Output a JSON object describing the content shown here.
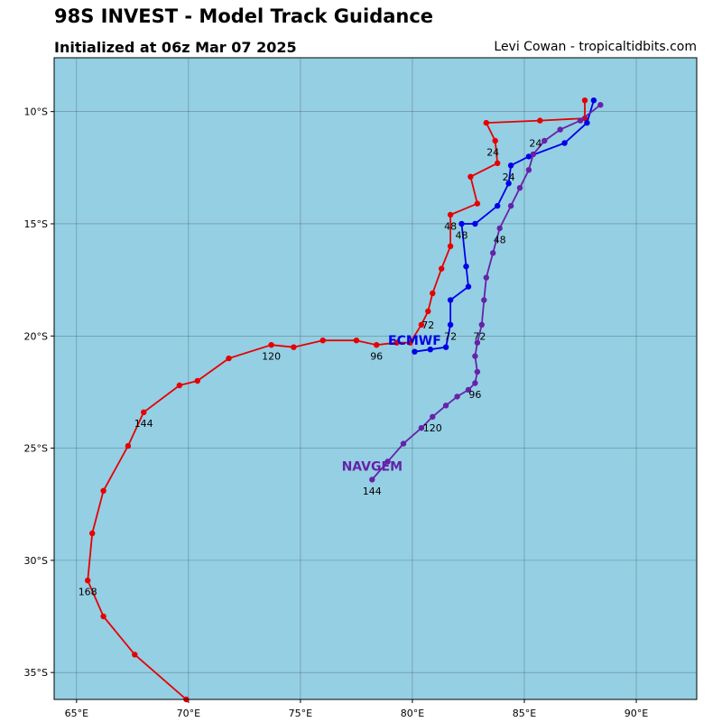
{
  "header": {
    "title": "98S INVEST - Model Track Guidance",
    "subtitle": "Initialized at 06z Mar 07 2025",
    "credit": "Levi Cowan - tropicaltidbits.com"
  },
  "chart_data": {
    "type": "line",
    "map": {
      "lon_range": [
        64.0,
        92.7
      ],
      "lat_range": [
        -36.2,
        -7.6
      ],
      "ocean_color": "#94cfe4",
      "grid": true,
      "lon_ticks": [
        {
          "value": 65,
          "label": "65°E"
        },
        {
          "value": 70,
          "label": "70°E"
        },
        {
          "value": 75,
          "label": "75°E"
        },
        {
          "value": 80,
          "label": "80°E"
        },
        {
          "value": 85,
          "label": "85°E"
        },
        {
          "value": 90,
          "label": "90°E"
        }
      ],
      "lat_ticks": [
        {
          "value": -10,
          "label": "10°S"
        },
        {
          "value": -15,
          "label": "15°S"
        },
        {
          "value": -20,
          "label": "20°S"
        },
        {
          "value": -25,
          "label": "25°S"
        },
        {
          "value": -30,
          "label": "30°S"
        },
        {
          "value": -35,
          "label": "35°S"
        }
      ]
    },
    "series": [
      {
        "name": "",
        "color": "#e60000",
        "points": [
          [
            87.7,
            -9.5
          ],
          [
            87.7,
            -10.3
          ],
          [
            85.7,
            -10.4
          ],
          [
            83.3,
            -10.5
          ],
          [
            83.7,
            -11.3
          ],
          [
            83.8,
            -12.3
          ],
          [
            82.6,
            -12.9
          ],
          [
            82.9,
            -14.1
          ],
          [
            81.7,
            -14.6
          ],
          [
            81.7,
            -16.0
          ],
          [
            81.3,
            -17.0
          ],
          [
            80.9,
            -18.1
          ],
          [
            80.7,
            -18.9
          ],
          [
            80.4,
            -19.5
          ],
          [
            79.9,
            -20.3
          ],
          [
            79.3,
            -20.3
          ],
          [
            78.4,
            -20.4
          ],
          [
            77.5,
            -20.2
          ],
          [
            76.0,
            -20.2
          ],
          [
            74.7,
            -20.5
          ],
          [
            73.7,
            -20.4
          ],
          [
            71.8,
            -21.0
          ],
          [
            70.4,
            -22.0
          ],
          [
            69.6,
            -22.2
          ],
          [
            68.0,
            -23.4
          ],
          [
            67.3,
            -24.9
          ],
          [
            66.2,
            -26.9
          ],
          [
            65.7,
            -28.8
          ],
          [
            65.5,
            -30.9
          ],
          [
            66.2,
            -32.5
          ],
          [
            67.6,
            -34.2
          ],
          [
            69.9,
            -36.2
          ]
        ],
        "tau_labels": [
          {
            "lon": 83.6,
            "lat": -11.8,
            "text": "24"
          },
          {
            "lon": 81.7,
            "lat": -15.1,
            "text": "48"
          },
          {
            "lon": 80.7,
            "lat": -19.5,
            "text": "72"
          },
          {
            "lon": 78.4,
            "lat": -20.9,
            "text": "96"
          },
          {
            "lon": 73.7,
            "lat": -20.9,
            "text": "120"
          },
          {
            "lon": 68.0,
            "lat": -23.9,
            "text": "144"
          },
          {
            "lon": 65.5,
            "lat": -31.4,
            "text": "168"
          }
        ]
      },
      {
        "name": "ECMWF",
        "color": "#0000e6",
        "points": [
          [
            88.1,
            -9.5
          ],
          [
            87.8,
            -10.5
          ],
          [
            86.8,
            -11.4
          ],
          [
            85.2,
            -12.0
          ],
          [
            84.4,
            -12.4
          ],
          [
            84.3,
            -13.2
          ],
          [
            83.8,
            -14.2
          ],
          [
            82.8,
            -15.0
          ],
          [
            82.2,
            -15.0
          ],
          [
            82.4,
            -16.9
          ],
          [
            82.5,
            -17.8
          ],
          [
            81.7,
            -18.4
          ],
          [
            81.7,
            -19.5
          ],
          [
            81.5,
            -20.5
          ],
          [
            80.8,
            -20.6
          ],
          [
            80.1,
            -20.7
          ]
        ],
        "tau_labels": [
          {
            "lon": 84.3,
            "lat": -12.9,
            "text": "24"
          },
          {
            "lon": 82.2,
            "lat": -15.5,
            "text": "48"
          },
          {
            "lon": 81.7,
            "lat": -20.0,
            "text": "72"
          }
        ],
        "label": {
          "lon": 80.1,
          "lat": -20.2
        }
      },
      {
        "name": "NAVGEM",
        "color": "#6622a8",
        "points": [
          [
            88.4,
            -9.7
          ],
          [
            87.5,
            -10.4
          ],
          [
            86.6,
            -10.8
          ],
          [
            85.9,
            -11.3
          ],
          [
            85.4,
            -11.9
          ],
          [
            85.2,
            -12.6
          ],
          [
            84.8,
            -13.4
          ],
          [
            84.4,
            -14.2
          ],
          [
            83.9,
            -15.2
          ],
          [
            83.6,
            -16.3
          ],
          [
            83.3,
            -17.4
          ],
          [
            83.2,
            -18.4
          ],
          [
            83.1,
            -19.5
          ],
          [
            82.9,
            -20.3
          ],
          [
            82.8,
            -20.9
          ],
          [
            82.9,
            -21.6
          ],
          [
            82.8,
            -22.1
          ],
          [
            82.5,
            -22.4
          ],
          [
            82.0,
            -22.7
          ],
          [
            81.5,
            -23.1
          ],
          [
            80.9,
            -23.6
          ],
          [
            80.4,
            -24.1
          ],
          [
            79.6,
            -24.8
          ],
          [
            78.9,
            -25.6
          ],
          [
            78.2,
            -26.4
          ]
        ],
        "tau_labels": [
          {
            "lon": 85.5,
            "lat": -11.4,
            "text": "24"
          },
          {
            "lon": 83.9,
            "lat": -15.7,
            "text": "48"
          },
          {
            "lon": 83.0,
            "lat": -20.0,
            "text": "72"
          },
          {
            "lon": 82.8,
            "lat": -22.6,
            "text": "96"
          },
          {
            "lon": 80.9,
            "lat": -24.1,
            "text": "120"
          },
          {
            "lon": 78.2,
            "lat": -26.9,
            "text": "144"
          }
        ],
        "label": {
          "lon": 78.2,
          "lat": -25.8
        }
      }
    ]
  }
}
